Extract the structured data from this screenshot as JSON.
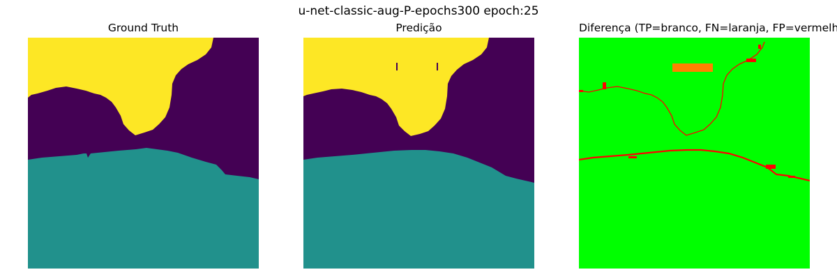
{
  "figure": {
    "title": "u-net-classic-aug-P-epochs300 epoch:25"
  },
  "panels": [
    {
      "title": "Ground Truth"
    },
    {
      "title": "Predição"
    },
    {
      "title": "Diferença (TP=branco, FN=laranja, FP=vermelho)"
    }
  ],
  "colors": {
    "class_background": "#440154",
    "class_region_a": "#fde725",
    "class_region_b": "#21918c",
    "diff_base": "#00ff00",
    "diff_fn": "#ff8000",
    "diff_fp": "#ff0000"
  }
}
